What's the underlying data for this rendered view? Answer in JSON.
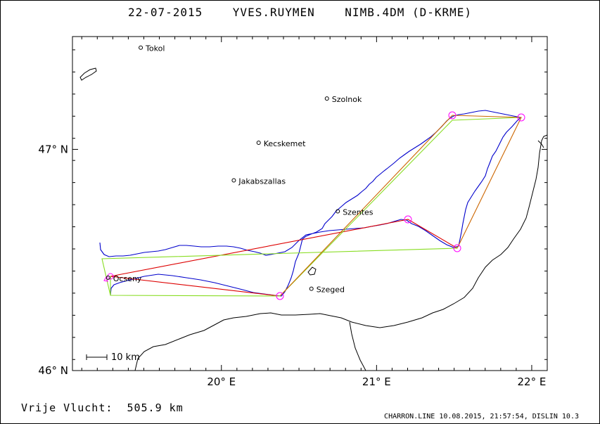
{
  "title": {
    "date": "22-07-2015",
    "pilot": "YVES.RUYMEN",
    "glider": "NIMB.4DM (D-KRME)"
  },
  "axes": {
    "y_labels": [
      {
        "lat": 47,
        "text": "47° N"
      },
      {
        "lat": 46,
        "text": "46° N"
      }
    ],
    "x_labels": [
      {
        "lon": 20,
        "text": "20° E"
      },
      {
        "lon": 21,
        "text": "21° E"
      },
      {
        "lon": 22,
        "text": "22° E"
      }
    ]
  },
  "cities": [
    {
      "name": "Tokol",
      "lon": 19.48,
      "lat": 47.46
    },
    {
      "name": "Szolnok",
      "lon": 20.68,
      "lat": 47.23
    },
    {
      "name": "Kecskemet",
      "lon": 20.24,
      "lat": 47.03
    },
    {
      "name": "Jakabszallas",
      "lon": 20.08,
      "lat": 46.86
    },
    {
      "name": "Szentes",
      "lon": 20.75,
      "lat": 46.72
    },
    {
      "name": "Ocseny",
      "lon": 19.27,
      "lat": 46.42
    },
    {
      "name": "Szeged",
      "lon": 20.58,
      "lat": 46.37
    }
  ],
  "scale_bar": {
    "label": "10 km"
  },
  "free_flight": {
    "label": "Vrije Vlucht:",
    "distance": "505.9 km"
  },
  "credits": "CHARRON.LINE 10.08.2015, 21:57:54, DISLIN 10.3",
  "colors": {
    "track": "#0000cc",
    "red_route": "#dd0000",
    "green_route": "#88dd22",
    "orange_route": "#cc6600",
    "turnpoint": "#ff00ff",
    "border": "#000000"
  }
}
